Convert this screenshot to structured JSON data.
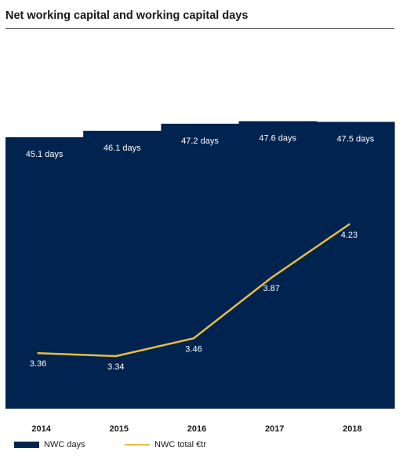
{
  "title": "Net working capital and working capital days",
  "colors": {
    "bar": "#00234f",
    "line": "#e9bd3f"
  },
  "chart_data": {
    "type": "bar",
    "title": "Net working capital and working capital days",
    "categories": [
      "2014",
      "2015",
      "2016",
      "2017",
      "2018"
    ],
    "series": [
      {
        "name": "NWC days",
        "type": "bar",
        "values": [
          45.1,
          46.1,
          47.2,
          47.6,
          47.5
        ],
        "labels": [
          "45.1 days",
          "46.1 days",
          "47.2 days",
          "47.6 days",
          "47.5 days"
        ]
      },
      {
        "name": "NWC total €tr",
        "type": "line",
        "values": [
          3.36,
          3.34,
          3.46,
          3.87,
          4.23
        ],
        "labels": [
          "3.36",
          "3.34",
          "3.46",
          "3.87",
          "4.23"
        ]
      }
    ],
    "legend": "bottom-left",
    "grid": false
  }
}
